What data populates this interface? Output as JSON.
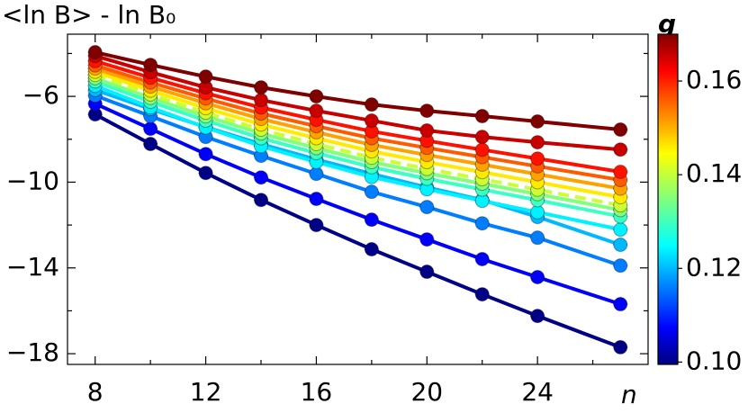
{
  "chart_data": {
    "type": "line",
    "title": "<ln B> - ln B₀",
    "x_label": "n",
    "x": [
      8,
      10,
      12,
      14,
      16,
      18,
      20,
      22,
      24,
      27
    ],
    "xlim": [
      7,
      28
    ],
    "xticks": [
      8,
      12,
      16,
      20,
      24
    ],
    "xminor_ticks": [
      10,
      14,
      18,
      22,
      26
    ],
    "ylim": [
      -18.5,
      -3.1
    ],
    "yticks": [
      {
        "value": -6,
        "label": "−6"
      },
      {
        "value": -10,
        "label": "−10"
      },
      {
        "value": -14,
        "label": "−14"
      },
      {
        "value": -18,
        "label": "−18"
      }
    ],
    "yminor_ticks": [
      -4,
      -8,
      -12,
      -16
    ],
    "colorbar": {
      "label": "g",
      "lim": [
        0.0995,
        0.17
      ],
      "ticks": [
        {
          "value": 0.1,
          "label": "0.10"
        },
        0.12,
        0.14,
        0.16
      ]
    },
    "series": [
      {
        "g": 0.1,
        "values": [
          -6.84,
          -8.22,
          -9.57,
          -10.83,
          -12.0,
          -13.13,
          -14.18,
          -15.23,
          -16.24,
          -17.7
        ]
      },
      {
        "g": 0.108,
        "values": [
          -6.34,
          -7.51,
          -8.69,
          -9.78,
          -10.78,
          -11.75,
          -12.67,
          -13.59,
          -14.43,
          -15.69
        ]
      },
      {
        "g": 0.117,
        "values": [
          -5.96,
          -6.92,
          -7.89,
          -8.77,
          -9.61,
          -10.45,
          -11.16,
          -11.92,
          -12.59,
          -13.89
        ]
      },
      {
        "g": 0.121,
        "values": [
          -5.7,
          -6.59,
          -7.43,
          -8.22,
          -8.94,
          -9.61,
          -10.24,
          -10.83,
          -11.62,
          -12.92
        ]
      },
      {
        "g": 0.125,
        "values": [
          -5.5,
          -6.51,
          -7.45,
          -8.32,
          -9.06,
          -9.76,
          -10.33,
          -10.87,
          -11.4,
          -12.21
        ]
      },
      {
        "g": 0.13,
        "values": [
          -5.3,
          -6.25,
          -7.13,
          -7.95,
          -8.64,
          -9.3,
          -9.84,
          -10.34,
          -10.84,
          -11.6
        ]
      },
      {
        "g": 0.135,
        "values": [
          -5.15,
          -6.07,
          -6.93,
          -7.73,
          -8.41,
          -9.06,
          -9.58,
          -10.07,
          -10.56,
          -11.3
        ]
      },
      {
        "g": 0.14,
        "dashed": true,
        "values": [
          -5.0,
          -5.91,
          -6.76,
          -7.55,
          -8.22,
          -8.86,
          -9.38,
          -9.86,
          -10.35,
          -11.08
        ]
      },
      {
        "g": 0.145,
        "values": [
          -4.85,
          -5.73,
          -6.55,
          -7.31,
          -7.95,
          -8.56,
          -9.06,
          -9.53,
          -10.0,
          -10.7
        ]
      },
      {
        "g": 0.15,
        "values": [
          -4.7,
          -5.54,
          -6.32,
          -7.05,
          -7.67,
          -8.26,
          -8.73,
          -9.18,
          -9.63,
          -10.3
        ]
      },
      {
        "g": 0.155,
        "values": [
          -4.55,
          -5.35,
          -6.1,
          -6.8,
          -7.39,
          -7.95,
          -8.4,
          -8.83,
          -9.26,
          -9.9
        ]
      },
      {
        "g": 0.16,
        "values": [
          -4.35,
          -5.13,
          -5.85,
          -6.52,
          -7.09,
          -7.63,
          -8.07,
          -8.49,
          -8.9,
          -9.52
        ]
      },
      {
        "g": 0.165,
        "values": [
          -4.11,
          -4.87,
          -5.58,
          -6.17,
          -6.67,
          -7.13,
          -7.59,
          -7.89,
          -8.14,
          -8.48
        ]
      },
      {
        "g": 0.17,
        "values": [
          -3.94,
          -4.53,
          -5.08,
          -5.58,
          -6.0,
          -6.38,
          -6.67,
          -6.92,
          -7.17,
          -7.55
        ]
      }
    ]
  }
}
